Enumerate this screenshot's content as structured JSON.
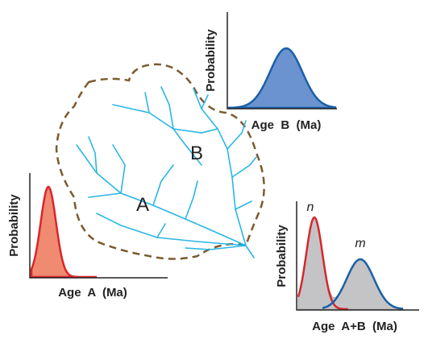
{
  "plot_b": {
    "y_label": "Probability",
    "x_label": "Age  B  (Ma)"
  },
  "plot_a": {
    "y_label": "Probability",
    "x_label": "Age  A  (Ma)"
  },
  "plot_ab": {
    "y_label": "Probability",
    "x_label": "Age  A+B  (Ma)",
    "peak_red": "n",
    "peak_blue": "m"
  },
  "basin": {
    "label_a": "A",
    "label_b": "B"
  }
}
